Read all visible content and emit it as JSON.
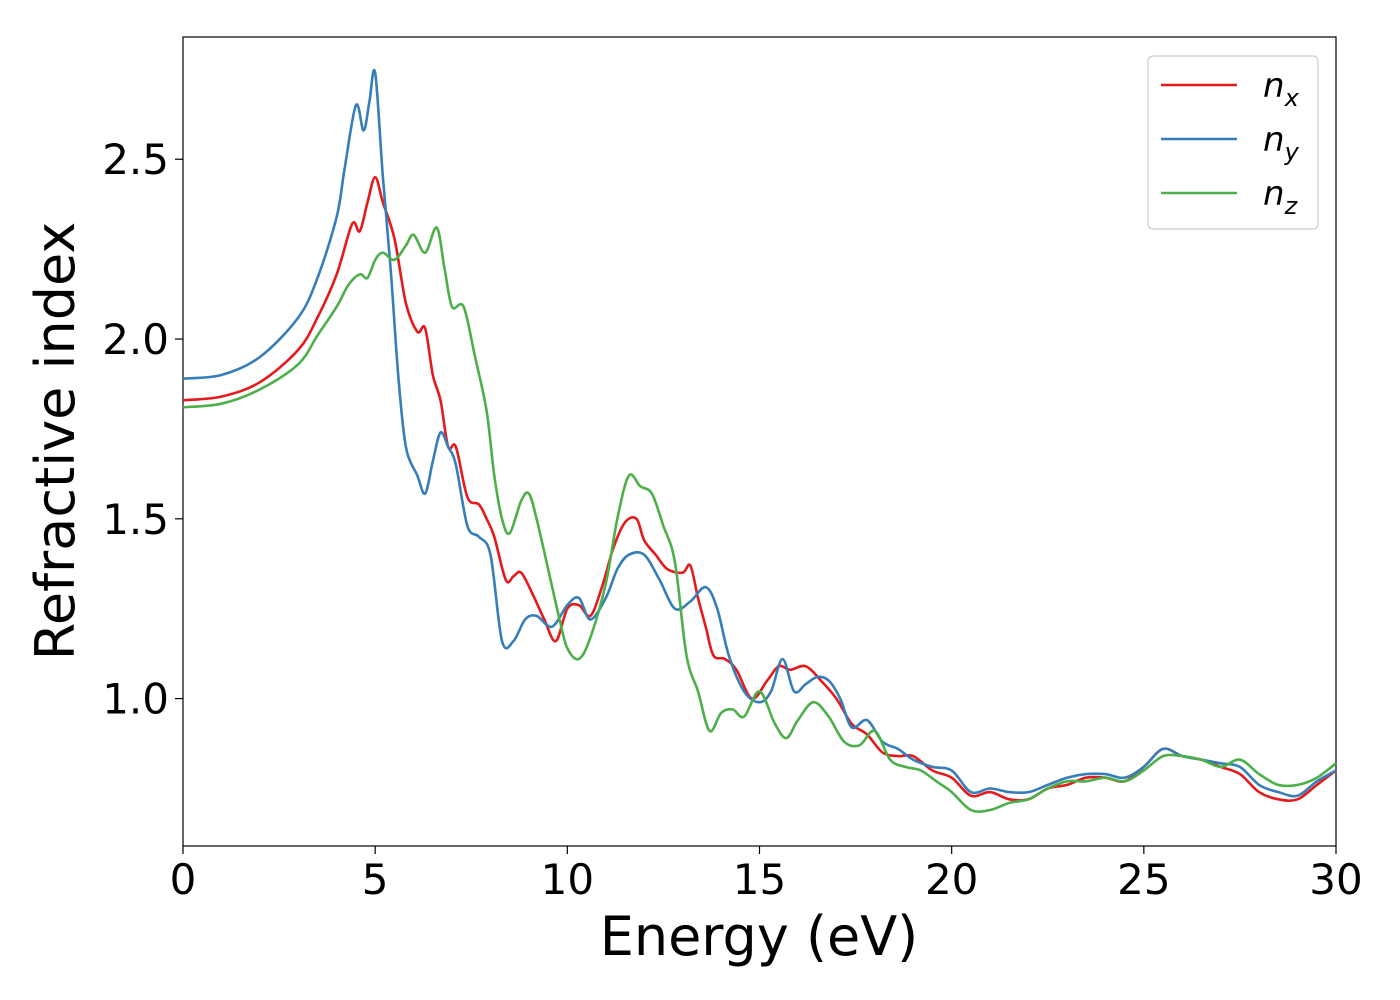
{
  "chart_data": {
    "type": "line",
    "xlabel": "Energy (eV)",
    "ylabel": "Refractive index",
    "xlim": [
      0,
      30
    ],
    "ylim": [
      0.59,
      2.84
    ],
    "xticks": [
      "0",
      "5",
      "10",
      "15",
      "20",
      "25",
      "30"
    ],
    "yticks": [
      "1.0",
      "1.5",
      "2.0",
      "2.5"
    ],
    "grid": false,
    "legend_position": "top-right",
    "series": [
      {
        "name": "n_x",
        "label_base": "n",
        "label_sub": "x",
        "color": "#e41a1c",
        "points": [
          [
            0,
            1.83
          ],
          [
            1,
            1.84
          ],
          [
            2,
            1.88
          ],
          [
            3,
            1.97
          ],
          [
            3.5,
            2.06
          ],
          [
            4,
            2.18
          ],
          [
            4.4,
            2.32
          ],
          [
            4.6,
            2.3
          ],
          [
            4.8,
            2.38
          ],
          [
            5.0,
            2.45
          ],
          [
            5.2,
            2.38
          ],
          [
            5.5,
            2.28
          ],
          [
            5.8,
            2.1
          ],
          [
            6.1,
            2.02
          ],
          [
            6.3,
            2.03
          ],
          [
            6.5,
            1.9
          ],
          [
            6.7,
            1.83
          ],
          [
            6.9,
            1.7
          ],
          [
            7.1,
            1.7
          ],
          [
            7.4,
            1.56
          ],
          [
            7.7,
            1.54
          ],
          [
            7.9,
            1.5
          ],
          [
            8.1,
            1.45
          ],
          [
            8.4,
            1.33
          ],
          [
            8.6,
            1.34
          ],
          [
            8.8,
            1.35
          ],
          [
            9.1,
            1.29
          ],
          [
            9.4,
            1.22
          ],
          [
            9.7,
            1.16
          ],
          [
            10.0,
            1.25
          ],
          [
            10.3,
            1.26
          ],
          [
            10.6,
            1.23
          ],
          [
            10.9,
            1.31
          ],
          [
            11.2,
            1.42
          ],
          [
            11.5,
            1.49
          ],
          [
            11.8,
            1.5
          ],
          [
            12.0,
            1.44
          ],
          [
            12.3,
            1.4
          ],
          [
            12.6,
            1.36
          ],
          [
            13.0,
            1.35
          ],
          [
            13.2,
            1.37
          ],
          [
            13.4,
            1.28
          ],
          [
            13.6,
            1.2
          ],
          [
            13.8,
            1.12
          ],
          [
            14.1,
            1.11
          ],
          [
            14.4,
            1.08
          ],
          [
            14.8,
            1.0
          ],
          [
            15.2,
            1.05
          ],
          [
            15.5,
            1.09
          ],
          [
            15.8,
            1.08
          ],
          [
            16.2,
            1.09
          ],
          [
            16.6,
            1.05
          ],
          [
            17.0,
            1.0
          ],
          [
            17.4,
            0.93
          ],
          [
            17.8,
            0.9
          ],
          [
            18.2,
            0.85
          ],
          [
            18.6,
            0.84
          ],
          [
            19.0,
            0.84
          ],
          [
            19.5,
            0.8
          ],
          [
            20.0,
            0.78
          ],
          [
            20.5,
            0.73
          ],
          [
            21.0,
            0.74
          ],
          [
            21.5,
            0.72
          ],
          [
            22.0,
            0.72
          ],
          [
            22.5,
            0.75
          ],
          [
            23.0,
            0.76
          ],
          [
            23.5,
            0.78
          ],
          [
            24.0,
            0.78
          ],
          [
            24.5,
            0.77
          ],
          [
            25.0,
            0.81
          ],
          [
            25.5,
            0.86
          ],
          [
            26.0,
            0.84
          ],
          [
            26.5,
            0.83
          ],
          [
            27.0,
            0.81
          ],
          [
            27.5,
            0.79
          ],
          [
            28.0,
            0.74
          ],
          [
            28.5,
            0.72
          ],
          [
            29.0,
            0.72
          ],
          [
            29.5,
            0.76
          ],
          [
            30,
            0.8
          ]
        ]
      },
      {
        "name": "n_y",
        "label_base": "n",
        "label_sub": "y",
        "color": "#377eb8",
        "points": [
          [
            0,
            1.89
          ],
          [
            1,
            1.9
          ],
          [
            2,
            1.95
          ],
          [
            3,
            2.06
          ],
          [
            3.5,
            2.17
          ],
          [
            4,
            2.34
          ],
          [
            4.2,
            2.47
          ],
          [
            4.5,
            2.65
          ],
          [
            4.7,
            2.58
          ],
          [
            4.85,
            2.66
          ],
          [
            5.0,
            2.74
          ],
          [
            5.2,
            2.45
          ],
          [
            5.4,
            2.2
          ],
          [
            5.6,
            1.9
          ],
          [
            5.8,
            1.7
          ],
          [
            6.1,
            1.62
          ],
          [
            6.3,
            1.57
          ],
          [
            6.5,
            1.66
          ],
          [
            6.7,
            1.74
          ],
          [
            6.9,
            1.7
          ],
          [
            7.1,
            1.65
          ],
          [
            7.4,
            1.48
          ],
          [
            7.7,
            1.45
          ],
          [
            8.0,
            1.4
          ],
          [
            8.3,
            1.16
          ],
          [
            8.6,
            1.16
          ],
          [
            8.9,
            1.22
          ],
          [
            9.2,
            1.23
          ],
          [
            9.6,
            1.2
          ],
          [
            10.0,
            1.26
          ],
          [
            10.3,
            1.28
          ],
          [
            10.6,
            1.22
          ],
          [
            11.0,
            1.28
          ],
          [
            11.3,
            1.36
          ],
          [
            11.6,
            1.4
          ],
          [
            12.0,
            1.4
          ],
          [
            12.4,
            1.33
          ],
          [
            12.8,
            1.25
          ],
          [
            13.2,
            1.27
          ],
          [
            13.6,
            1.31
          ],
          [
            13.9,
            1.25
          ],
          [
            14.2,
            1.12
          ],
          [
            14.6,
            1.02
          ],
          [
            15.0,
            0.99
          ],
          [
            15.3,
            1.02
          ],
          [
            15.6,
            1.11
          ],
          [
            15.9,
            1.02
          ],
          [
            16.2,
            1.04
          ],
          [
            16.5,
            1.06
          ],
          [
            16.8,
            1.05
          ],
          [
            17.1,
            1.0
          ],
          [
            17.4,
            0.92
          ],
          [
            17.8,
            0.94
          ],
          [
            18.2,
            0.88
          ],
          [
            18.6,
            0.86
          ],
          [
            19.0,
            0.83
          ],
          [
            19.5,
            0.81
          ],
          [
            20.0,
            0.8
          ],
          [
            20.5,
            0.74
          ],
          [
            21.0,
            0.75
          ],
          [
            21.5,
            0.74
          ],
          [
            22.0,
            0.74
          ],
          [
            22.5,
            0.76
          ],
          [
            23.0,
            0.78
          ],
          [
            23.5,
            0.79
          ],
          [
            24.0,
            0.79
          ],
          [
            24.5,
            0.78
          ],
          [
            25.0,
            0.81
          ],
          [
            25.5,
            0.86
          ],
          [
            26.0,
            0.84
          ],
          [
            26.5,
            0.83
          ],
          [
            27.0,
            0.82
          ],
          [
            27.5,
            0.81
          ],
          [
            28.0,
            0.76
          ],
          [
            28.5,
            0.74
          ],
          [
            29.0,
            0.73
          ],
          [
            29.5,
            0.77
          ],
          [
            30,
            0.8
          ]
        ]
      },
      {
        "name": "n_z",
        "label_base": "n",
        "label_sub": "z",
        "color": "#4daf4a",
        "points": [
          [
            0,
            1.81
          ],
          [
            1,
            1.82
          ],
          [
            2,
            1.86
          ],
          [
            3,
            1.93
          ],
          [
            3.5,
            2.01
          ],
          [
            4,
            2.09
          ],
          [
            4.3,
            2.15
          ],
          [
            4.6,
            2.18
          ],
          [
            4.8,
            2.17
          ],
          [
            5.0,
            2.22
          ],
          [
            5.2,
            2.24
          ],
          [
            5.5,
            2.22
          ],
          [
            5.8,
            2.26
          ],
          [
            6.0,
            2.29
          ],
          [
            6.3,
            2.24
          ],
          [
            6.6,
            2.31
          ],
          [
            6.8,
            2.2
          ],
          [
            7.0,
            2.09
          ],
          [
            7.3,
            2.09
          ],
          [
            7.6,
            1.95
          ],
          [
            7.9,
            1.8
          ],
          [
            8.1,
            1.62
          ],
          [
            8.3,
            1.5
          ],
          [
            8.5,
            1.46
          ],
          [
            8.8,
            1.55
          ],
          [
            9.0,
            1.57
          ],
          [
            9.2,
            1.5
          ],
          [
            9.5,
            1.36
          ],
          [
            9.8,
            1.22
          ],
          [
            10.0,
            1.14
          ],
          [
            10.3,
            1.11
          ],
          [
            10.6,
            1.17
          ],
          [
            11.0,
            1.32
          ],
          [
            11.3,
            1.5
          ],
          [
            11.6,
            1.62
          ],
          [
            11.9,
            1.59
          ],
          [
            12.2,
            1.57
          ],
          [
            12.5,
            1.48
          ],
          [
            12.8,
            1.38
          ],
          [
            13.1,
            1.12
          ],
          [
            13.4,
            1.02
          ],
          [
            13.7,
            0.91
          ],
          [
            14.0,
            0.96
          ],
          [
            14.3,
            0.97
          ],
          [
            14.6,
            0.95
          ],
          [
            15.0,
            1.02
          ],
          [
            15.4,
            0.93
          ],
          [
            15.7,
            0.89
          ],
          [
            16.0,
            0.94
          ],
          [
            16.4,
            0.99
          ],
          [
            16.8,
            0.95
          ],
          [
            17.2,
            0.88
          ],
          [
            17.6,
            0.87
          ],
          [
            18.0,
            0.91
          ],
          [
            18.4,
            0.83
          ],
          [
            18.8,
            0.81
          ],
          [
            19.2,
            0.8
          ],
          [
            19.6,
            0.77
          ],
          [
            20.0,
            0.74
          ],
          [
            20.5,
            0.69
          ],
          [
            21.0,
            0.69
          ],
          [
            21.5,
            0.71
          ],
          [
            22.0,
            0.72
          ],
          [
            22.5,
            0.75
          ],
          [
            23.0,
            0.77
          ],
          [
            23.5,
            0.77
          ],
          [
            24.0,
            0.78
          ],
          [
            24.5,
            0.77
          ],
          [
            25.0,
            0.8
          ],
          [
            25.5,
            0.84
          ],
          [
            26.0,
            0.84
          ],
          [
            26.5,
            0.83
          ],
          [
            27.0,
            0.81
          ],
          [
            27.5,
            0.83
          ],
          [
            28.0,
            0.79
          ],
          [
            28.5,
            0.76
          ],
          [
            29.0,
            0.76
          ],
          [
            29.5,
            0.78
          ],
          [
            30,
            0.82
          ]
        ]
      }
    ]
  }
}
